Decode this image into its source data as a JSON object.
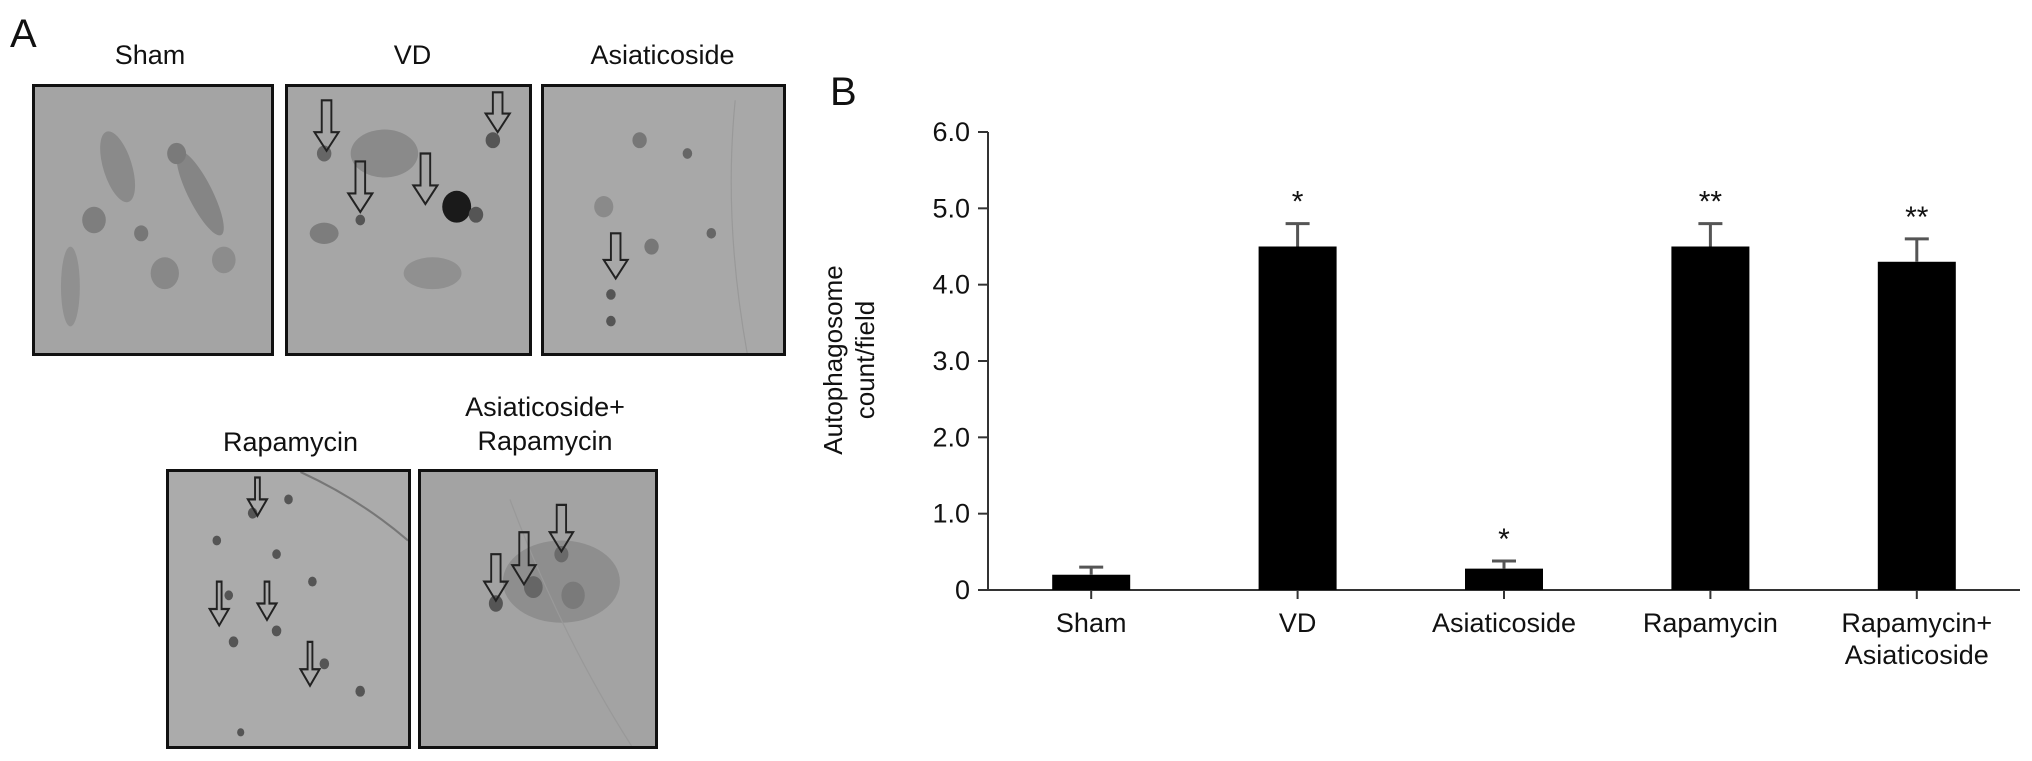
{
  "panels": {
    "a_letter": "A",
    "b_letter": "B"
  },
  "micrographs": [
    {
      "label": "Sham"
    },
    {
      "label": "VD"
    },
    {
      "label": "Asiaticoside"
    },
    {
      "label": "Rapamycin"
    },
    {
      "label_line1": "Asiaticoside+",
      "label_line2": "Rapamycin"
    }
  ],
  "chart_data": {
    "type": "bar",
    "categories": [
      [
        "Sham"
      ],
      [
        "VD"
      ],
      [
        "Asiaticoside"
      ],
      [
        "Rapamycin"
      ],
      [
        "Rapamycin+",
        "Asiaticoside"
      ]
    ],
    "values": [
      0.2,
      4.5,
      0.28,
      4.5,
      4.3
    ],
    "errors": [
      0.1,
      0.3,
      0.1,
      0.3,
      0.3
    ],
    "annotations": [
      "",
      "*",
      "*",
      "**",
      "**"
    ],
    "ylabel_line1": "Autophagosome",
    "ylabel_line2": "count/field",
    "yticks": [
      "0",
      "1.0",
      "2.0",
      "3.0",
      "4.0",
      "5.0",
      "6.0"
    ],
    "ylim": [
      0,
      6
    ],
    "bar_color": "#000000",
    "grid": false
  }
}
